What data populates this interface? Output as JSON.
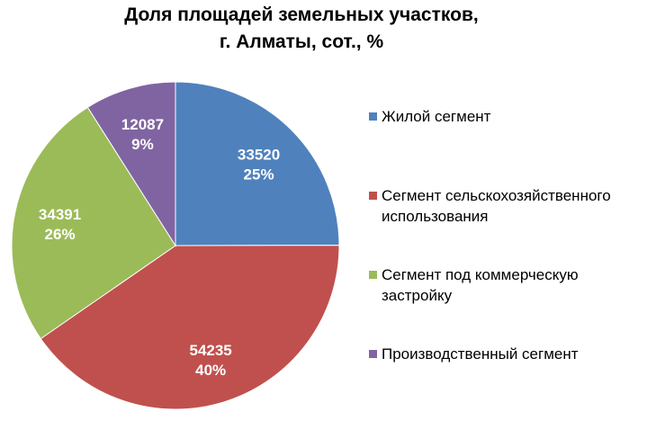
{
  "chart_data": {
    "type": "pie",
    "title_line1": "Доля площадей земельных участков,",
    "title_line2": "г. Алматы, сот., %",
    "slices": [
      {
        "name": "Жилой сегмент",
        "value": 33520,
        "percent_label": "25%",
        "value_label": "33520",
        "color": "#4f81bd"
      },
      {
        "name": "Сегмент сельскохозяйственного использования",
        "value": 54235,
        "percent_label": "40%",
        "value_label": "54235",
        "color": "#c0504d"
      },
      {
        "name": "Сегмент под коммерческую застройку",
        "value": 34391,
        "percent_label": "26%",
        "value_label": "34391",
        "color": "#9bbb59"
      },
      {
        "name": "Производственный сегмент",
        "value": 12087,
        "percent_label": "9%",
        "value_label": "12087",
        "color": "#8064a2"
      }
    ],
    "legend_position": "right"
  },
  "legend": {
    "items": [
      {
        "label_line1": "Жилой сегмент",
        "label_line2": ""
      },
      {
        "label_line1": "Сегмент сельскохозяйственного",
        "label_line2": "использования"
      },
      {
        "label_line1": "Сегмент под коммерческую",
        "label_line2": "застройку"
      },
      {
        "label_line1": "Производственный сегмент",
        "label_line2": ""
      }
    ]
  }
}
